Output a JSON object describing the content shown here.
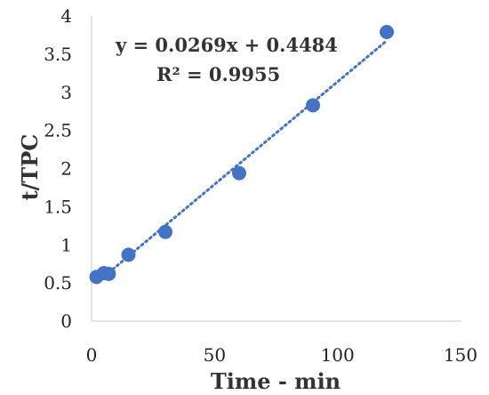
{
  "chart_data": {
    "type": "scatter",
    "title": "",
    "xlabel": "Time - min",
    "ylabel": "t/TPC",
    "xlim": [
      0,
      150
    ],
    "ylim": [
      0,
      4
    ],
    "xticks": [
      0,
      50,
      100,
      150
    ],
    "yticks": [
      0,
      0.5,
      1,
      1.5,
      2,
      2.5,
      3,
      3.5,
      4
    ],
    "grid": false,
    "legend": "none",
    "series": [
      {
        "color": "#4472c4",
        "points": [
          {
            "x": 2,
            "y": 0.58
          },
          {
            "x": 5,
            "y": 0.63
          },
          {
            "x": 7,
            "y": 0.62
          },
          {
            "x": 15,
            "y": 0.87
          },
          {
            "x": 30,
            "y": 1.17
          },
          {
            "x": 60,
            "y": 1.94
          },
          {
            "x": 90,
            "y": 2.83
          },
          {
            "x": 120,
            "y": 3.79
          }
        ]
      }
    ],
    "trendline": {
      "type": "linear",
      "slope": 0.0269,
      "intercept": 0.4484,
      "x_range": [
        2,
        120
      ],
      "style": "dotted",
      "color": "#4472c4"
    },
    "annotations": {
      "equation": "y = 0.0269x + 0.4484",
      "r_squared": "R² = 0.9955"
    }
  }
}
